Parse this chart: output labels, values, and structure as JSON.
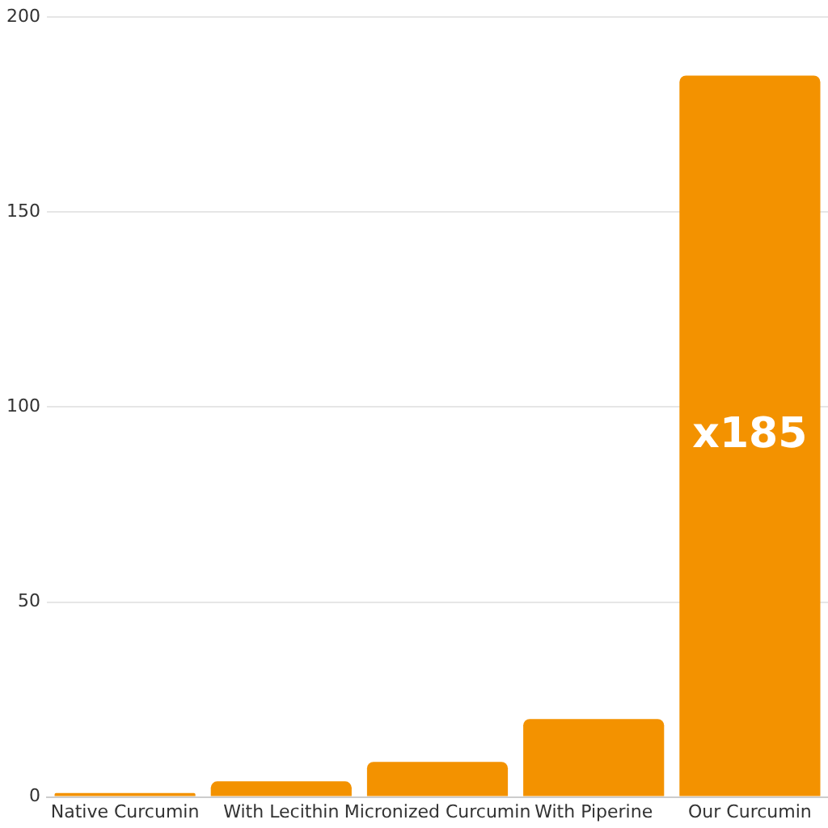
{
  "chart_data": {
    "type": "bar",
    "categories": [
      "Native Curcumin",
      "With Lecithin",
      "Micronized Curcumin",
      "With Piperine",
      "Our Curcumin"
    ],
    "values": [
      1,
      4,
      9,
      20,
      185
    ],
    "value_labels": [
      null,
      null,
      null,
      null,
      "x185"
    ],
    "color": "#f39200",
    "ylim": [
      0,
      200
    ],
    "yticks": [
      0,
      50,
      100,
      150,
      200
    ],
    "grid": "y",
    "legend": false
  }
}
